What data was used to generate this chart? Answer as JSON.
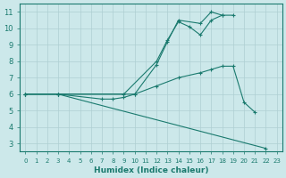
{
  "xlabel": "Humidex (Indice chaleur)",
  "xlim": [
    -0.5,
    23.5
  ],
  "ylim": [
    2.5,
    11.5
  ],
  "xticks": [
    0,
    1,
    2,
    3,
    4,
    5,
    6,
    7,
    8,
    9,
    10,
    11,
    12,
    13,
    14,
    15,
    16,
    17,
    18,
    19,
    20,
    21,
    22,
    23
  ],
  "yticks": [
    3,
    4,
    5,
    6,
    7,
    8,
    9,
    10,
    11
  ],
  "line_color": "#1a7a6e",
  "bg_color": "#cce8ea",
  "grid_color": "#aecfd2",
  "lines": [
    {
      "x": [
        0,
        3,
        9,
        12,
        13,
        14,
        15,
        16,
        17,
        18
      ],
      "y": [
        6,
        6,
        6,
        8,
        9.3,
        10.4,
        10.1,
        9.6,
        10.5,
        10.8
      ]
    },
    {
      "x": [
        0,
        3,
        10,
        12,
        13,
        14,
        16,
        17,
        18,
        19
      ],
      "y": [
        6,
        6,
        6,
        7.8,
        9.2,
        10.5,
        10.3,
        11,
        10.8,
        10.8
      ]
    },
    {
      "x": [
        0,
        3,
        7,
        8,
        9,
        10,
        12,
        14,
        16,
        17,
        18,
        19,
        20,
        21
      ],
      "y": [
        6,
        6,
        5.7,
        5.7,
        5.8,
        6,
        6.5,
        7,
        7.3,
        7.5,
        7.7,
        7.7,
        5.5,
        4.9
      ]
    },
    {
      "x": [
        0,
        3,
        22
      ],
      "y": [
        6,
        6,
        2.7
      ]
    }
  ]
}
